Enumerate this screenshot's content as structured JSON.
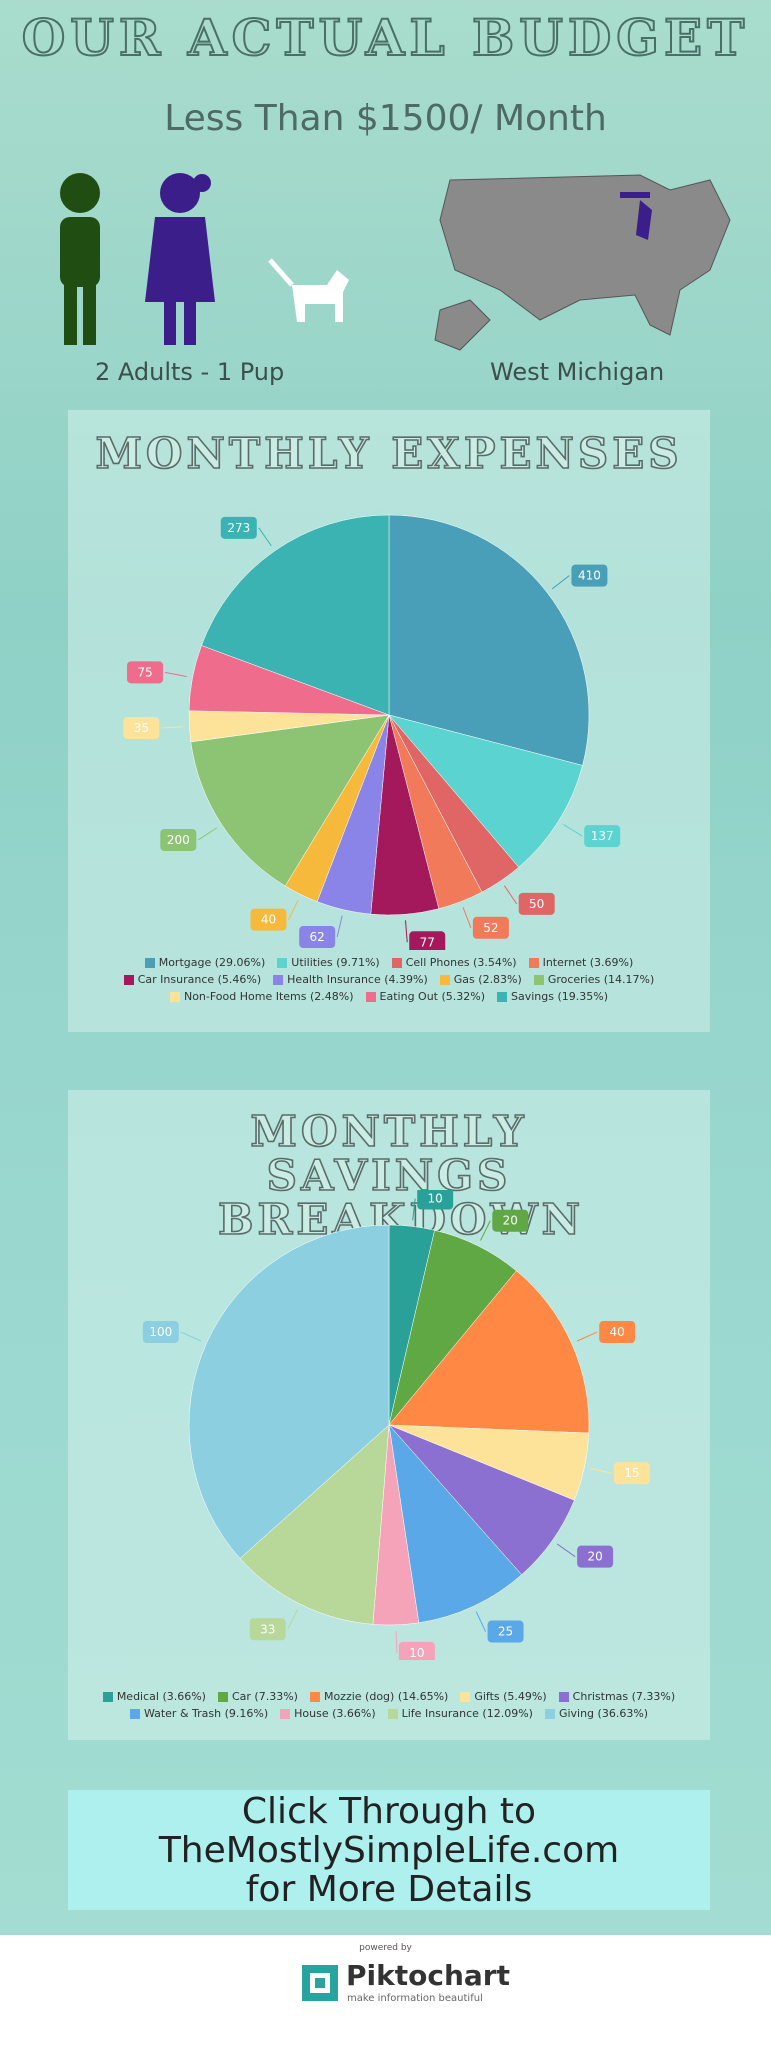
{
  "header": {
    "title": "OUR ACTUAL BUDGET",
    "subtitle": "Less Than $1500/ Month",
    "household": "2 Adults - 1 Pup",
    "location": "West Michigan"
  },
  "chart_data": [
    {
      "type": "pie",
      "title": "MONTHLY EXPENSES",
      "categories": [
        "Mortgage (29.06%)",
        "Utilities (9.71%)",
        "Cell Phones (3.54%)",
        "Internet (3.69%)",
        "Car Insurance (5.46%)",
        "Health Insurance (4.39%)",
        "Gas (2.83%)",
        "Groceries (14.17%)",
        "Non-Food Home Items (2.48%)",
        "Eating Out (5.32%)",
        "Savings (19.35%)"
      ],
      "values": [
        410,
        137,
        50,
        52,
        77,
        62,
        40,
        200,
        35,
        75,
        273
      ],
      "colors": [
        "#4a9fb8",
        "#5bd3d0",
        "#e06666",
        "#f07a5a",
        "#a3195b",
        "#8b84e8",
        "#f6b93b",
        "#8cc474",
        "#fde39a",
        "#f06c8c",
        "#3bb3b3"
      ]
    },
    {
      "type": "pie",
      "title": "MONTHLY SAVINGS BREAKDOWN",
      "categories": [
        "Medical (3.66%)",
        "Car (7.33%)",
        "Mozzie (dog) (14.65%)",
        "Gifts (5.49%)",
        "Christmas (7.33%)",
        "Water & Trash (9.16%)",
        "House (3.66%)",
        "Life Insurance (12.09%)",
        "Giving (36.63%)"
      ],
      "values": [
        10,
        20,
        40,
        15,
        20,
        25,
        10,
        33,
        100
      ],
      "colors": [
        "#2aa198",
        "#5fa844",
        "#ff8845",
        "#fde39a",
        "#8b6fd1",
        "#5ba8e8",
        "#f4a3b8",
        "#b8d89a",
        "#8ccfe0"
      ]
    }
  ],
  "cta": {
    "lines": [
      "Click Through to",
      "TheMostlySimpleLife.com",
      "for More Details"
    ]
  },
  "footer": {
    "powered": "powered by",
    "brand": "Piktochart",
    "tagline": "make information beautiful"
  }
}
